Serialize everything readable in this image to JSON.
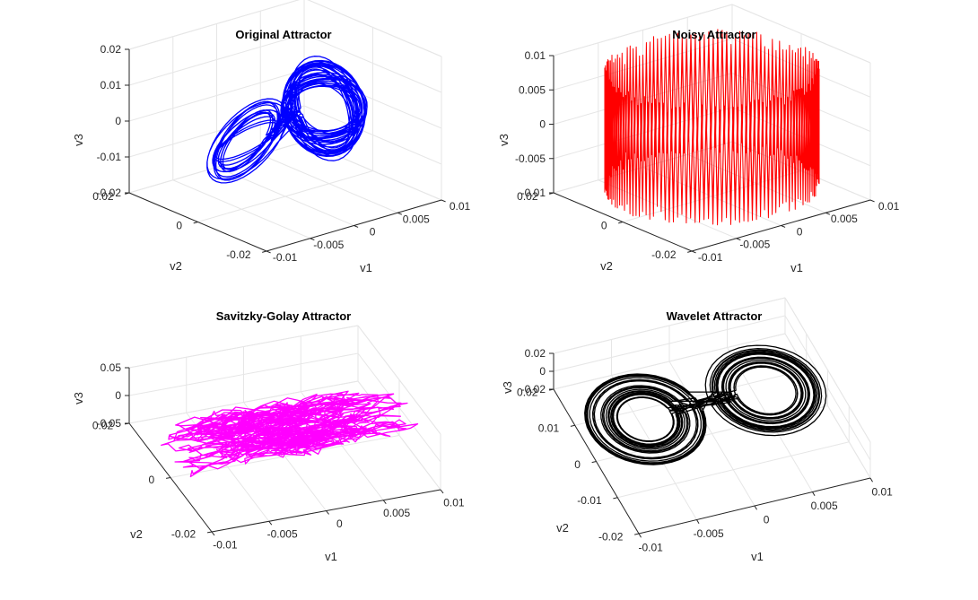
{
  "chart_data": [
    {
      "type": "line",
      "subtype": "3d-curve",
      "pattern": "lorenz-butterfly",
      "title": "Original Attractor",
      "xlabel": "v1",
      "ylabel": "v2",
      "zlabel": "v3",
      "xticks": [
        "-0.01",
        "-0.005",
        "0",
        "0.005",
        "0.01"
      ],
      "yticks": [
        "-0.02",
        "0",
        "0.02"
      ],
      "zticks": [
        "-0.02",
        "-0.01",
        "0",
        "0.01",
        "0.02"
      ],
      "xlim": [
        -0.01,
        0.01
      ],
      "ylim": [
        -0.02,
        0.02
      ],
      "zlim": [
        -0.02,
        0.02
      ],
      "color": "#0000ff",
      "grid": true,
      "series": [
        {
          "lobe_centers_v1": [
            -0.005,
            0.005
          ],
          "lobe_radius_v1": 0.004,
          "lobe_radius_v3": 0.012
        }
      ]
    },
    {
      "type": "line",
      "subtype": "3d-curve",
      "pattern": "noisy-band",
      "title": "Noisy Attractor",
      "xlabel": "v1",
      "ylabel": "v2",
      "zlabel": "v3",
      "xticks": [
        "-0.01",
        "-0.005",
        "0",
        "0.005",
        "0.01"
      ],
      "yticks": [
        "-0.02",
        "0",
        "0.02"
      ],
      "zticks": [
        "-0.01",
        "-0.005",
        "0",
        "0.005",
        "0.01"
      ],
      "xlim": [
        -0.01,
        0.01
      ],
      "ylim": [
        -0.02,
        0.02
      ],
      "zlim": [
        -0.01,
        0.01
      ],
      "color": "#ff0000",
      "grid": true,
      "series": [
        {
          "v3_band": [
            -0.0085,
            0.0085
          ]
        }
      ]
    },
    {
      "type": "line",
      "subtype": "3d-curve",
      "pattern": "smoothed-cloud",
      "title": "Savitzky-Golay Attractor",
      "xlabel": "v1",
      "ylabel": "v2",
      "zlabel": "v3",
      "xticks": [
        "-0.01",
        "-0.005",
        "0",
        "0.005",
        "0.01"
      ],
      "yticks": [
        "-0.02",
        "0",
        "0.02"
      ],
      "zticks": [
        "-0.05",
        "0",
        "0.05"
      ],
      "xlim": [
        -0.01,
        0.01
      ],
      "ylim": [
        -0.02,
        0.02
      ],
      "zlim": [
        -0.05,
        0.05
      ],
      "color": "#ff00ff",
      "grid": true,
      "series": [
        {
          "v1_range": [
            -0.009,
            0.009
          ],
          "v3_range": [
            -0.01,
            0.01
          ]
        }
      ]
    },
    {
      "type": "line",
      "subtype": "3d-curve",
      "pattern": "lorenz-butterfly-flat",
      "title": "Wavelet Attractor",
      "xlabel": "v1",
      "ylabel": "v2",
      "zlabel": "v3",
      "xticks": [
        "-0.01",
        "-0.005",
        "0",
        "0.005",
        "0.01"
      ],
      "yticks": [
        "-0.02",
        "-0.01",
        "0",
        "0.01",
        "0.02"
      ],
      "zticks": [
        "-0.02",
        "0",
        "0.02"
      ],
      "xlim": [
        -0.01,
        0.01
      ],
      "ylim": [
        -0.02,
        0.02
      ],
      "zlim": [
        -0.02,
        0.02
      ],
      "color": "#000000",
      "grid": true,
      "series": [
        {
          "lobe_centers_v1": [
            -0.005,
            0.005
          ],
          "lobe_radius_v1": 0.004,
          "lobe_radius_v2": 0.01
        }
      ]
    }
  ]
}
